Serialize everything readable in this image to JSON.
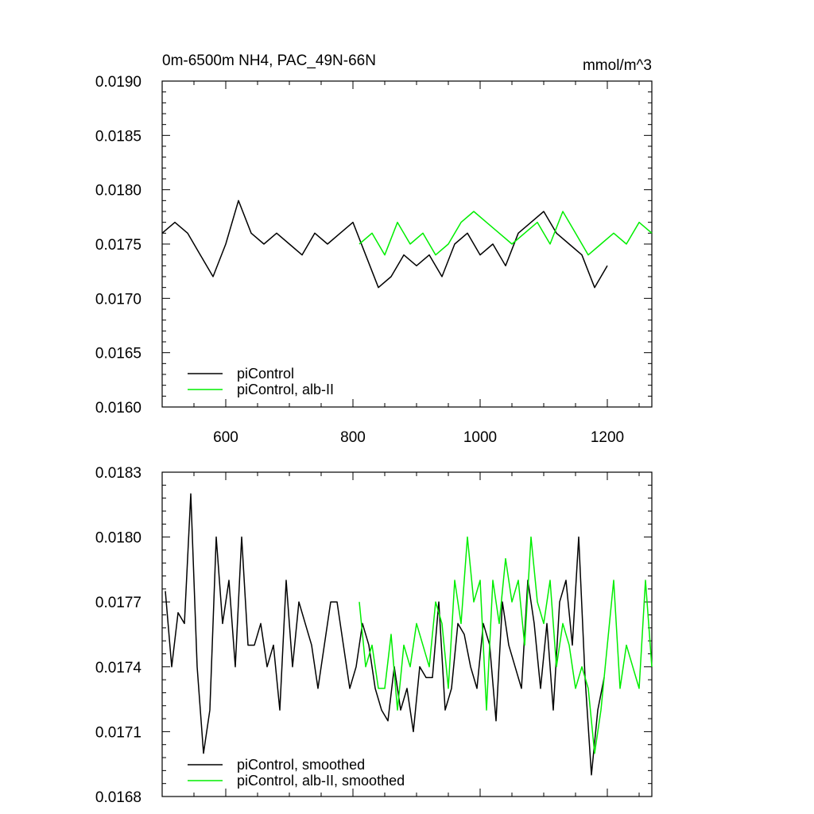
{
  "chart_data": [
    {
      "type": "line",
      "title": "0m-6500m NH4, PAC_49N-66N",
      "units_label": "mmol/m^3",
      "xlim": [
        500,
        1270
      ],
      "ylim": [
        0.016,
        0.019
      ],
      "x_ticks": [
        600,
        800,
        1000,
        1200
      ],
      "x_tick_labels": [
        "600",
        "800",
        "1000",
        "1200"
      ],
      "y_ticks": [
        0.016,
        0.0165,
        0.017,
        0.0175,
        0.018,
        0.0185,
        0.019
      ],
      "y_tick_labels": [
        "0.0160",
        "0.0165",
        "0.0170",
        "0.0175",
        "0.0180",
        "0.0185",
        "0.0190"
      ],
      "legend_position": "bottom-left",
      "colors": {
        "piControl": "#000000",
        "alb-II": "#00ee00"
      },
      "series": [
        {
          "name": "piControl",
          "color": "#000000",
          "x": [
            500,
            520,
            540,
            560,
            580,
            600,
            620,
            640,
            660,
            680,
            700,
            720,
            740,
            760,
            780,
            800,
            820,
            840,
            860,
            880,
            900,
            920,
            940,
            960,
            980,
            1000,
            1020,
            1040,
            1060,
            1080,
            1100,
            1120,
            1140,
            1160,
            1180,
            1200
          ],
          "y": [
            0.0176,
            0.0177,
            0.0176,
            0.0174,
            0.0172,
            0.0175,
            0.0179,
            0.0176,
            0.0175,
            0.0176,
            0.0175,
            0.0174,
            0.0176,
            0.0175,
            0.0176,
            0.0177,
            0.0174,
            0.0171,
            0.0172,
            0.0174,
            0.0173,
            0.0174,
            0.0172,
            0.0175,
            0.0176,
            0.0174,
            0.0175,
            0.0173,
            0.0176,
            0.0177,
            0.0178,
            0.0176,
            0.0175,
            0.0174,
            0.0171,
            0.0173
          ]
        },
        {
          "name": "piControl, alb-II",
          "color": "#00ee00",
          "x": [
            810,
            830,
            850,
            870,
            890,
            910,
            930,
            950,
            970,
            990,
            1010,
            1030,
            1050,
            1070,
            1090,
            1110,
            1130,
            1150,
            1170,
            1190,
            1210,
            1230,
            1250,
            1270
          ],
          "y": [
            0.0175,
            0.0176,
            0.0174,
            0.0177,
            0.0175,
            0.0176,
            0.0174,
            0.0175,
            0.0177,
            0.0178,
            0.0177,
            0.0176,
            0.0175,
            0.0176,
            0.0177,
            0.0175,
            0.0178,
            0.0176,
            0.0174,
            0.0175,
            0.0176,
            0.0175,
            0.0177,
            0.0176
          ]
        }
      ]
    },
    {
      "type": "line",
      "xlim": [
        500,
        1270
      ],
      "ylim": [
        0.0168,
        0.0183
      ],
      "x_ticks": [
        600,
        800,
        1000,
        1200
      ],
      "y_ticks": [
        0.0168,
        0.0171,
        0.0174,
        0.0177,
        0.018,
        0.0183
      ],
      "y_tick_labels": [
        "0.0168",
        "0.0171",
        "0.0174",
        "0.0177",
        "0.0180",
        "0.0183"
      ],
      "legend_position": "bottom-left",
      "series": [
        {
          "name": "piControl, smoothed",
          "color": "#000000",
          "x": [
            505,
            515,
            525,
            535,
            545,
            555,
            565,
            575,
            585,
            595,
            605,
            615,
            625,
            635,
            645,
            655,
            665,
            675,
            685,
            695,
            705,
            715,
            725,
            735,
            745,
            755,
            765,
            775,
            785,
            795,
            805,
            815,
            825,
            835,
            845,
            855,
            865,
            875,
            885,
            895,
            905,
            915,
            925,
            935,
            945,
            955,
            965,
            975,
            985,
            995,
            1005,
            1015,
            1025,
            1035,
            1045,
            1055,
            1065,
            1075,
            1085,
            1095,
            1105,
            1115,
            1125,
            1135,
            1145,
            1155,
            1165,
            1175,
            1185,
            1195
          ],
          "y": [
            0.01775,
            0.0174,
            0.01765,
            0.0176,
            0.0182,
            0.0174,
            0.017,
            0.0172,
            0.018,
            0.0176,
            0.0178,
            0.0174,
            0.018,
            0.0175,
            0.0175,
            0.0176,
            0.0174,
            0.0175,
            0.0172,
            0.0178,
            0.0174,
            0.0177,
            0.0176,
            0.0175,
            0.0173,
            0.0175,
            0.0177,
            0.0177,
            0.0175,
            0.0173,
            0.0174,
            0.0176,
            0.0175,
            0.0173,
            0.0172,
            0.01715,
            0.0174,
            0.0172,
            0.0173,
            0.0171,
            0.0174,
            0.01735,
            0.01735,
            0.0177,
            0.0172,
            0.0173,
            0.0176,
            0.01755,
            0.0174,
            0.0173,
            0.0176,
            0.0175,
            0.01715,
            0.0177,
            0.0175,
            0.0174,
            0.0173,
            0.0178,
            0.0176,
            0.0173,
            0.0176,
            0.0172,
            0.0177,
            0.0178,
            0.0175,
            0.018,
            0.01735,
            0.0169,
            0.0172,
            0.01735
          ]
        },
        {
          "name": "piControl, alb-II, smoothed",
          "color": "#00ee00",
          "x": [
            810,
            820,
            830,
            840,
            850,
            860,
            870,
            880,
            890,
            900,
            910,
            920,
            930,
            940,
            950,
            960,
            970,
            980,
            990,
            1000,
            1010,
            1020,
            1030,
            1040,
            1050,
            1060,
            1070,
            1080,
            1090,
            1100,
            1110,
            1120,
            1130,
            1140,
            1150,
            1160,
            1170,
            1180,
            1190,
            1200,
            1210,
            1220,
            1230,
            1240,
            1250,
            1260,
            1270
          ],
          "y": [
            0.0177,
            0.0174,
            0.0175,
            0.0173,
            0.0173,
            0.01755,
            0.0172,
            0.0175,
            0.0174,
            0.0176,
            0.0175,
            0.0174,
            0.0177,
            0.0176,
            0.0173,
            0.0178,
            0.0176,
            0.018,
            0.0177,
            0.0178,
            0.0172,
            0.0178,
            0.0176,
            0.0179,
            0.0177,
            0.0178,
            0.0175,
            0.018,
            0.0177,
            0.0176,
            0.0178,
            0.0174,
            0.0176,
            0.0175,
            0.0173,
            0.0174,
            0.0173,
            0.017,
            0.0172,
            0.0175,
            0.0178,
            0.0173,
            0.0175,
            0.0174,
            0.0173,
            0.0178,
            0.0174
          ]
        }
      ]
    }
  ]
}
